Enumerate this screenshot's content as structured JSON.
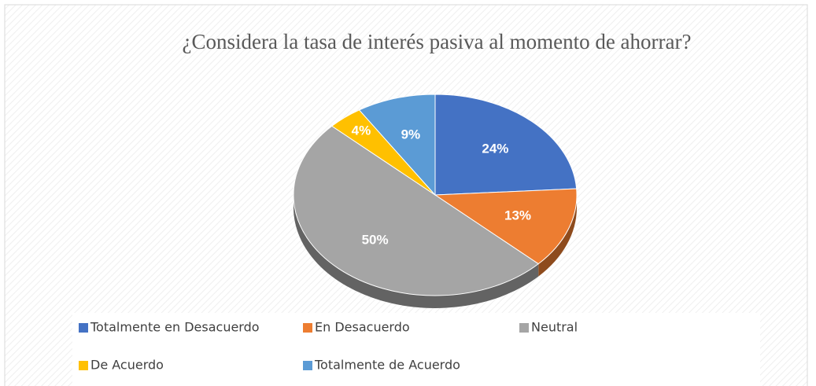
{
  "chart_data": {
    "type": "pie",
    "title": "¿Considera la tasa de interés pasiva al momento de ahorrar?",
    "categories": [
      "Totalmente en Desacuerdo",
      "En Desacuerdo",
      "Neutral",
      "De Acuerdo",
      "Totalmente de Acuerdo"
    ],
    "values": [
      24,
      13,
      50,
      4,
      9
    ],
    "value_labels": [
      "24%",
      "13%",
      "50%",
      "4%",
      "9%"
    ],
    "colors": [
      "#4472c4",
      "#ed7d31",
      "#a5a5a5",
      "#ffc000",
      "#5b9bd5"
    ],
    "legend": "bottom"
  }
}
